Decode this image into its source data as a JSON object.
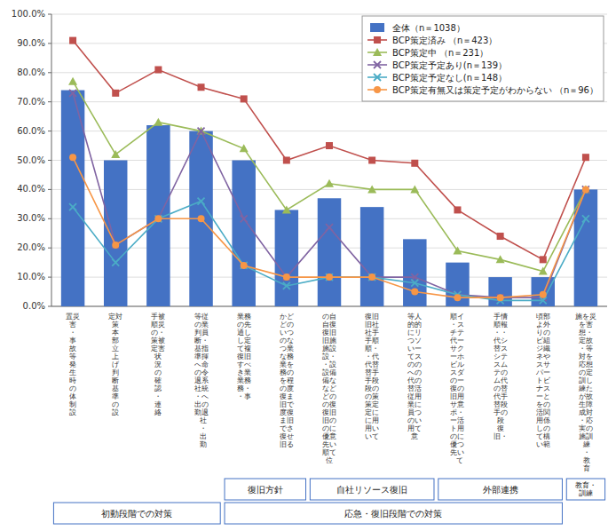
{
  "chart_data": {
    "type": "bar",
    "categories": [
      "置災\n害\n・\n事\n故\n等\n発\n生\n時\nの\n体\n制\n設",
      "定対\n策\n本\n部\n立\n上\nげ\n判\n断\n基\n準\nの\n設",
      "手被\n順災\nの・\n策被\n定害\n状\n況\nの\n確\n認\n・\n連\n絡",
      "等従\nの業\n判員\n断・\n基指\n準揮\nへ命\nの令\n退系\n社統\n・へ\n出の\n勤退\n  社\n  ・\n  出\n  勤",
      "業務\nの先\n通し\nし定\nて複\n復旧\nすべ\nき業\n業務\n務・\n・事",
      "かど\nどの\nいつ\nのな\nつ業\nな務\n業を\n務の\nを程\nの度\n復ま\n旧で\n度復\nま旧\nでさ\n復せ\n旧る",
      "の自\n自復\n復旧\n旧施\n施設\n設・\n・設\n設備\n備な\nなど\nどの\nの復\n復旧\n旧の\nのに\n優意\n先い\n順て\n位",
      "復旧\n旧社\n社手\n手順\n順・\n・代\n代替\n替手\n手段\n段の\nの策\n策定\n定に\nに用\n用い\nいて",
      "等人\n的的\nにリ\nつソ\nいー\nてス\nのの\nへの\n代の\n替活\n従用\n業に\n員つ\nのい\n用て\n意",
      "順イ\n・ス\nチテ\n代ー\nサク\nーホ\nビル\nスダ\nのー\n復の\n旧用\nサ意\nポ・\nー活\nト用\nのに\n優つ\n先い\n  て",
      "手情\n順報\n・・\n代シ\n替ス\nシテ\nスム\nテの\nム代\nの替\n代手\n替段\n手の\n段\n復\n旧・",
      "頃部\nよ外\nりの\nビ組\nジ織\nネや\nスサ\nパー\nトビ\nナス\nーと\nをの\n活関\n用係\nしの\nて構\nい範",
      "施を災\nを害\n想・\n定故\n・等\n対を\n応想\nの定\n訓し\n練た\nが故\n生障\n成対\n・応\n実の\n施訓\n 練\n ・\n 教\n 育"
    ],
    "series": [
      {
        "name": "全体（n＝1038）",
        "type": "bar",
        "color": "#4472c4",
        "values": [
          74,
          50,
          62,
          60,
          50,
          33,
          37,
          34,
          23,
          15,
          10,
          10,
          40
        ]
      },
      {
        "name": "BCP策定済み （n＝423）",
        "type": "line",
        "marker": "square",
        "color": "#c0504d",
        "values": [
          91,
          73,
          81,
          75,
          71,
          50,
          55,
          50,
          49,
          33,
          24,
          16,
          51
        ]
      },
      {
        "name": "BCP策定中 （n＝231）",
        "type": "line",
        "marker": "triangle",
        "color": "#9bbb59",
        "values": [
          77,
          52,
          63,
          60,
          54,
          33,
          42,
          40,
          40,
          19,
          16,
          12,
          40
        ]
      },
      {
        "name": "BCP策定予定あり(n＝139）",
        "type": "line",
        "marker": "x",
        "color": "#8064a2",
        "values": [
          73,
          21,
          30,
          60,
          30,
          10,
          27,
          10,
          10,
          4,
          3,
          3,
          40
        ]
      },
      {
        "name": "BCP策定予定なし(n＝148）",
        "type": "line",
        "marker": "x",
        "color": "#4bacc6",
        "values": [
          34,
          15,
          30,
          36,
          14,
          7,
          10,
          10,
          8,
          4,
          2,
          2,
          30
        ]
      },
      {
        "name": "BCP策定有無又は策定予定がわからない （n＝96）",
        "type": "line",
        "marker": "circle",
        "color": "#f79646",
        "values": [
          51,
          21,
          30,
          30,
          14,
          10,
          10,
          10,
          5,
          3,
          3,
          4,
          40
        ]
      }
    ],
    "ylim": [
      0,
      100
    ],
    "yticks": [
      {
        "value": 0,
        "label": "0.0%"
      },
      {
        "value": 10,
        "label": "10.0%"
      },
      {
        "value": 20,
        "label": "20.0%"
      },
      {
        "value": 30,
        "label": "30.0%"
      },
      {
        "value": 40,
        "label": "40.0%"
      },
      {
        "value": 50,
        "label": "50.0%"
      },
      {
        "value": 60,
        "label": "60.0%"
      },
      {
        "value": 70,
        "label": "70.0%"
      },
      {
        "value": 80,
        "label": "80.0%"
      },
      {
        "value": 90,
        "label": "90.0%"
      },
      {
        "value": 100,
        "label": "100.0%"
      }
    ],
    "grid": true,
    "legend": "upper right",
    "annotations": [
      [
        {
          "text": "復旧方針",
          "span": [
            4,
            5
          ]
        },
        {
          "text": "自社リソース復旧",
          "span": [
            6,
            8
          ]
        },
        {
          "text": "外部連携",
          "span": [
            9,
            11
          ]
        },
        {
          "text": "教育・\n訓練",
          "span": [
            12,
            12
          ]
        }
      ],
      [
        {
          "text": "初動段階での対策",
          "span": [
            0,
            3
          ]
        },
        {
          "text": "応急・復旧段階での対策",
          "span": [
            4,
            11
          ]
        }
      ]
    ]
  }
}
